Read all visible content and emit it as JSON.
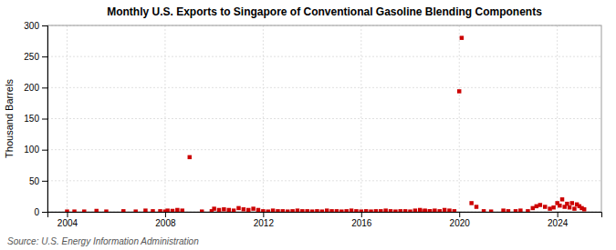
{
  "chart_data": {
    "type": "scatter",
    "title": "Monthly U.S. Exports to Singapore of Conventional Gasoline Blending Components",
    "ylabel": "Thousand Barrels",
    "annotations": [
      "Source: U.S. Energy Information Administration"
    ],
    "color": "#cc0000",
    "marker": "square",
    "grid": true,
    "xlim": [
      2003.2,
      2025.8
    ],
    "ylim": [
      0,
      300
    ],
    "xticks": [
      2004,
      2008,
      2012,
      2016,
      2020,
      2024
    ],
    "yticks": [
      0,
      50,
      100,
      150,
      200,
      250,
      300
    ],
    "x": [
      2004.0,
      2004.3,
      2004.7,
      2005.2,
      2005.6,
      2006.3,
      2006.8,
      2007.2,
      2007.5,
      2007.8,
      2008.0,
      2008.1,
      2008.3,
      2008.5,
      2008.7,
      2009.0,
      2009.5,
      2009.9,
      2010.0,
      2010.2,
      2010.4,
      2010.6,
      2010.8,
      2011.0,
      2011.2,
      2011.4,
      2011.6,
      2011.8,
      2012.0,
      2012.2,
      2012.4,
      2012.6,
      2012.8,
      2013.0,
      2013.2,
      2013.4,
      2013.6,
      2013.8,
      2014.0,
      2014.2,
      2014.4,
      2014.6,
      2014.8,
      2015.0,
      2015.2,
      2015.4,
      2015.6,
      2015.8,
      2016.0,
      2016.2,
      2016.4,
      2016.6,
      2016.8,
      2017.0,
      2017.2,
      2017.4,
      2017.6,
      2017.8,
      2018.0,
      2018.2,
      2018.4,
      2018.6,
      2018.8,
      2018.4,
      2018.6,
      2018.8,
      2019.0,
      2019.2,
      2019.4,
      2019.6,
      2019.8,
      2020.0,
      2020.1,
      2020.5,
      2020.7,
      2021.0,
      2021.3,
      2021.8,
      2022.0,
      2022.3,
      2022.5,
      2022.8,
      2023.0,
      2023.15,
      2023.3,
      2023.5,
      2023.7,
      2023.85,
      2024.0,
      2024.1,
      2024.2,
      2024.3,
      2024.4,
      2024.5,
      2024.6,
      2024.7,
      2024.8,
      2024.9,
      2025.0,
      2025.1
    ],
    "values": [
      0.5,
      0.5,
      0.5,
      1.5,
      0.5,
      1.0,
      0.5,
      2.0,
      1.0,
      1.0,
      0.5,
      2.0,
      1.5,
      3.0,
      2.0,
      88,
      0.5,
      1.0,
      5,
      3,
      4,
      3,
      2,
      6,
      4,
      3,
      5,
      3,
      1,
      0.5,
      2,
      1,
      1,
      0.5,
      1,
      2,
      1,
      1,
      0.5,
      1,
      0.5,
      2,
      1,
      1,
      0.5,
      1,
      2,
      1,
      0.5,
      1,
      0.5,
      1,
      1,
      2,
      1,
      0.5,
      1,
      1,
      0.5,
      2,
      1,
      0.5,
      1,
      3,
      2,
      1,
      2,
      1,
      3,
      2,
      1,
      194,
      280,
      14,
      8,
      1,
      0.5,
      2,
      1,
      1,
      2,
      1,
      6,
      9,
      11,
      8,
      5,
      7,
      14,
      10,
      20,
      8,
      13,
      7,
      14,
      5,
      12,
      9,
      6,
      4
    ]
  }
}
